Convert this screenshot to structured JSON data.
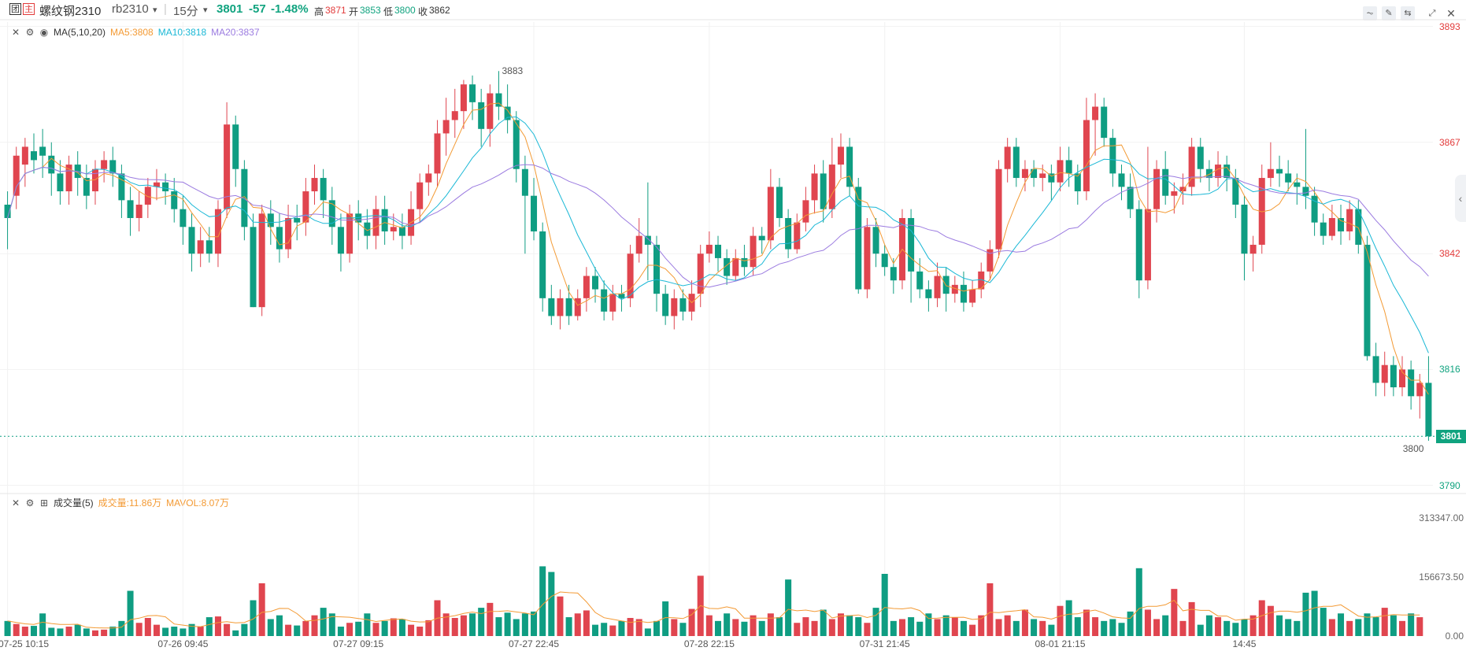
{
  "header": {
    "badge1": "团",
    "badge2": "主",
    "name": "螺纹钢2310",
    "code": "rb2310",
    "code_arrow": "▾",
    "divider": "|",
    "period": "15分",
    "period_arrow": "▾",
    "price": "3801",
    "change": "-57",
    "change_pct": "-1.48%",
    "high_label": "高",
    "high": "3871",
    "open_label": "开",
    "open": "3853",
    "low_label": "低",
    "low": "3800",
    "close_label": "收",
    "close": "3862"
  },
  "toolbar": {
    "icons": [
      "line-tool-icon",
      "pencil-icon",
      "compare-icon",
      "fullscreen-icon",
      "close-icon"
    ]
  },
  "main_legend": {
    "indicator": "MA(5,10,20)",
    "ma5": "MA5:3808",
    "ma10": "MA10:3818",
    "ma20": "MA20:3837"
  },
  "volume_legend": {
    "indicator": "成交量(5)",
    "vol": "成交量:11.86万",
    "mavol": "MAVOL:8.07万"
  },
  "colors": {
    "up": "#e0454f",
    "down": "#0f9d82",
    "ma5": "#f39a34",
    "ma10": "#1bb8d6",
    "ma20": "#9b7be0",
    "price_axis_up": "#e23b3b",
    "price_axis_down": "#10a37f"
  },
  "chart_data": {
    "type": "candlestick",
    "price_axis": {
      "ticks": [
        {
          "value": 3893,
          "label": "3893"
        },
        {
          "value": 3867,
          "label": "3867"
        },
        {
          "value": 3842,
          "label": "3842"
        },
        {
          "value": 3816,
          "label": "3816"
        },
        {
          "value": 3790,
          "label": "3790"
        }
      ],
      "ylim": [
        3788.5,
        3894
      ],
      "last_price": "3801",
      "last_price_value": 3801
    },
    "annotations": {
      "max": {
        "label": "3883",
        "value": 3883
      },
      "min": {
        "label": "3800",
        "value": 3800
      }
    },
    "x_ticks": [
      {
        "label": "07-25 10:15",
        "index": 0
      },
      {
        "label": "07-26 09:45",
        "index": 20
      },
      {
        "label": "07-27 09:15",
        "index": 40
      },
      {
        "label": "07-27 22:45",
        "index": 60
      },
      {
        "label": "07-28 22:15",
        "index": 80
      },
      {
        "label": "07-31 21:45",
        "index": 100
      },
      {
        "label": "08-01 21:15",
        "index": 120
      },
      {
        "label": "14:45",
        "index": 141
      }
    ],
    "volume_axis": {
      "ticks": [
        {
          "value": 313347,
          "label": "313347.00"
        },
        {
          "value": 156673.5,
          "label": "156673.50"
        },
        {
          "value": 0,
          "label": "0.00"
        }
      ],
      "ylim": [
        0,
        330000
      ]
    },
    "candles": [
      [
        3853,
        3850,
        3856,
        3843
      ],
      [
        3855,
        3864,
        3866,
        3852
      ],
      [
        3862,
        3866,
        3868,
        3857
      ],
      [
        3865,
        3863,
        3869,
        3860
      ],
      [
        3866,
        3864,
        3870,
        3859
      ],
      [
        3864,
        3860,
        3867,
        3855
      ],
      [
        3860,
        3856,
        3863,
        3853
      ],
      [
        3856,
        3862,
        3864,
        3853
      ],
      [
        3862,
        3859,
        3865,
        3855
      ],
      [
        3859,
        3855,
        3862,
        3852
      ],
      [
        3856,
        3861,
        3863,
        3853
      ],
      [
        3861,
        3863,
        3865,
        3858
      ],
      [
        3863,
        3860,
        3866,
        3857
      ],
      [
        3860,
        3854,
        3862,
        3850
      ],
      [
        3854,
        3850,
        3857,
        3846
      ],
      [
        3850,
        3853,
        3856,
        3847
      ],
      [
        3853,
        3857,
        3859,
        3850
      ],
      [
        3857,
        3858,
        3861,
        3854
      ],
      [
        3858,
        3856,
        3860,
        3853
      ],
      [
        3856,
        3852,
        3859,
        3849
      ],
      [
        3852,
        3848,
        3855,
        3844
      ],
      [
        3848,
        3842,
        3851,
        3838
      ],
      [
        3842,
        3845,
        3848,
        3839
      ],
      [
        3845,
        3842,
        3848,
        3840
      ],
      [
        3842,
        3852,
        3854,
        3839
      ],
      [
        3852,
        3871,
        3876,
        3850
      ],
      [
        3871,
        3861,
        3873,
        3857
      ],
      [
        3861,
        3848,
        3863,
        3845
      ],
      [
        3848,
        3830,
        3851,
        3830
      ],
      [
        3830,
        3851,
        3853,
        3828
      ],
      [
        3851,
        3848,
        3854,
        3844
      ],
      [
        3848,
        3843,
        3851,
        3840
      ],
      [
        3843,
        3850,
        3853,
        3841
      ],
      [
        3850,
        3849,
        3853,
        3845
      ],
      [
        3849,
        3856,
        3859,
        3846
      ],
      [
        3856,
        3859,
        3862,
        3853
      ],
      [
        3859,
        3854,
        3861,
        3850
      ],
      [
        3854,
        3848,
        3857,
        3844
      ],
      [
        3848,
        3842,
        3851,
        3838
      ],
      [
        3842,
        3851,
        3853,
        3840
      ],
      [
        3851,
        3849,
        3854,
        3845
      ],
      [
        3849,
        3846,
        3852,
        3843
      ],
      [
        3846,
        3852,
        3855,
        3843
      ],
      [
        3852,
        3847,
        3855,
        3844
      ],
      [
        3847,
        3848,
        3851,
        3845
      ],
      [
        3848,
        3846,
        3851,
        3843
      ],
      [
        3846,
        3852,
        3856,
        3844
      ],
      [
        3852,
        3858,
        3860,
        3849
      ],
      [
        3858,
        3860,
        3862,
        3855
      ],
      [
        3860,
        3869,
        3872,
        3857
      ],
      [
        3869,
        3872,
        3877,
        3864
      ],
      [
        3872,
        3874,
        3879,
        3868
      ],
      [
        3874,
        3880,
        3881,
        3870
      ],
      [
        3880,
        3876,
        3882,
        3872
      ],
      [
        3876,
        3870,
        3879,
        3866
      ],
      [
        3870,
        3878,
        3880,
        3866
      ],
      [
        3878,
        3875,
        3883,
        3872
      ],
      [
        3875,
        3872,
        3880,
        3869
      ],
      [
        3872,
        3861,
        3874,
        3858
      ],
      [
        3861,
        3855,
        3864,
        3842
      ],
      [
        3855,
        3847,
        3859,
        3845
      ],
      [
        3847,
        3832,
        3849,
        3829
      ],
      [
        3832,
        3828,
        3835,
        3826
      ],
      [
        3828,
        3832,
        3834,
        3825
      ],
      [
        3832,
        3828,
        3835,
        3826
      ],
      [
        3828,
        3832,
        3834,
        3827
      ],
      [
        3832,
        3837,
        3839,
        3829
      ],
      [
        3837,
        3834,
        3839,
        3831
      ],
      [
        3834,
        3829,
        3836,
        3827
      ],
      [
        3829,
        3833,
        3835,
        3827
      ],
      [
        3833,
        3832,
        3835,
        3829
      ],
      [
        3832,
        3842,
        3844,
        3830
      ],
      [
        3842,
        3846,
        3850,
        3840
      ],
      [
        3846,
        3844,
        3858,
        3836
      ],
      [
        3844,
        3833,
        3846,
        3829
      ],
      [
        3833,
        3828,
        3835,
        3826
      ],
      [
        3828,
        3832,
        3834,
        3825
      ],
      [
        3832,
        3829,
        3834,
        3827
      ],
      [
        3829,
        3833,
        3836,
        3827
      ],
      [
        3833,
        3842,
        3844,
        3830
      ],
      [
        3842,
        3844,
        3847,
        3840
      ],
      [
        3844,
        3841,
        3846,
        3838
      ],
      [
        3841,
        3837,
        3843,
        3835
      ],
      [
        3837,
        3841,
        3843,
        3836
      ],
      [
        3841,
        3839,
        3844,
        3837
      ],
      [
        3839,
        3846,
        3848,
        3837
      ],
      [
        3846,
        3845,
        3848,
        3842
      ],
      [
        3845,
        3857,
        3861,
        3843
      ],
      [
        3857,
        3850,
        3859,
        3848
      ],
      [
        3850,
        3843,
        3852,
        3841
      ],
      [
        3843,
        3849,
        3851,
        3842
      ],
      [
        3849,
        3854,
        3857,
        3847
      ],
      [
        3854,
        3860,
        3862,
        3851
      ],
      [
        3860,
        3852,
        3863,
        3849
      ],
      [
        3852,
        3862,
        3868,
        3850
      ],
      [
        3862,
        3866,
        3869,
        3859
      ],
      [
        3866,
        3857,
        3868,
        3855
      ],
      [
        3857,
        3834,
        3859,
        3833
      ],
      [
        3834,
        3848,
        3850,
        3832
      ],
      [
        3848,
        3842,
        3850,
        3839
      ],
      [
        3842,
        3839,
        3844,
        3837
      ],
      [
        3839,
        3836,
        3841,
        3833
      ],
      [
        3836,
        3850,
        3852,
        3834
      ],
      [
        3850,
        3838,
        3852,
        3831
      ],
      [
        3838,
        3834,
        3841,
        3832
      ],
      [
        3834,
        3832,
        3836,
        3829
      ],
      [
        3832,
        3837,
        3840,
        3830
      ],
      [
        3837,
        3833,
        3839,
        3829
      ],
      [
        3833,
        3835,
        3837,
        3831
      ],
      [
        3835,
        3831,
        3838,
        3829
      ],
      [
        3831,
        3834,
        3836,
        3830
      ],
      [
        3834,
        3838,
        3840,
        3832
      ],
      [
        3838,
        3843,
        3845,
        3836
      ],
      [
        3843,
        3861,
        3863,
        3841
      ],
      [
        3861,
        3866,
        3868,
        3858
      ],
      [
        3866,
        3859,
        3868,
        3857
      ],
      [
        3859,
        3861,
        3863,
        3856
      ],
      [
        3861,
        3859,
        3863,
        3857
      ],
      [
        3859,
        3860,
        3862,
        3856
      ],
      [
        3860,
        3858,
        3862,
        3854
      ],
      [
        3858,
        3863,
        3866,
        3856
      ],
      [
        3863,
        3860,
        3866,
        3857
      ],
      [
        3860,
        3856,
        3862,
        3853
      ],
      [
        3856,
        3872,
        3877,
        3854
      ],
      [
        3872,
        3875,
        3878,
        3864
      ],
      [
        3875,
        3868,
        3877,
        3866
      ],
      [
        3868,
        3860,
        3870,
        3857
      ],
      [
        3860,
        3857,
        3862,
        3854
      ],
      [
        3857,
        3852,
        3860,
        3850
      ],
      [
        3852,
        3836,
        3854,
        3832
      ],
      [
        3836,
        3852,
        3866,
        3834
      ],
      [
        3852,
        3861,
        3863,
        3849
      ],
      [
        3861,
        3855,
        3865,
        3853
      ],
      [
        3855,
        3856,
        3858,
        3851
      ],
      [
        3856,
        3857,
        3860,
        3853
      ],
      [
        3857,
        3866,
        3868,
        3855
      ],
      [
        3866,
        3861,
        3868,
        3858
      ],
      [
        3861,
        3859,
        3863,
        3856
      ],
      [
        3859,
        3862,
        3865,
        3857
      ],
      [
        3862,
        3859,
        3864,
        3856
      ],
      [
        3859,
        3853,
        3861,
        3850
      ],
      [
        3853,
        3842,
        3855,
        3836
      ],
      [
        3842,
        3844,
        3846,
        3838
      ],
      [
        3844,
        3859,
        3862,
        3842
      ],
      [
        3859,
        3861,
        3867,
        3857
      ],
      [
        3861,
        3860,
        3864,
        3857
      ],
      [
        3860,
        3858,
        3863,
        3856
      ],
      [
        3858,
        3857,
        3860,
        3853
      ],
      [
        3857,
        3855,
        3870,
        3852
      ],
      [
        3855,
        3849,
        3857,
        3846
      ],
      [
        3849,
        3846,
        3851,
        3844
      ],
      [
        3846,
        3850,
        3853,
        3845
      ],
      [
        3850,
        3847,
        3853,
        3844
      ],
      [
        3847,
        3852,
        3854,
        3845
      ],
      [
        3852,
        3844,
        3854,
        3842
      ],
      [
        3844,
        3819,
        3846,
        3818
      ],
      [
        3819,
        3813,
        3822,
        3810
      ],
      [
        3813,
        3817,
        3820,
        3810
      ],
      [
        3817,
        3812,
        3819,
        3810
      ],
      [
        3812,
        3816,
        3819,
        3810
      ],
      [
        3816,
        3810,
        3818,
        3807
      ],
      [
        3810,
        3813,
        3815,
        3805
      ],
      [
        3813,
        3801,
        3819,
        3800
      ]
    ],
    "volume": [
      40,
      32,
      25,
      27,
      60,
      22,
      20,
      25,
      30,
      20,
      15,
      17,
      25,
      40,
      120,
      35,
      48,
      30,
      22,
      25,
      20,
      32,
      25,
      50,
      52,
      32,
      15,
      32,
      95,
      140,
      45,
      55,
      30,
      28,
      40,
      55,
      75,
      60,
      25,
      35,
      38,
      60,
      35,
      40,
      47,
      45,
      30,
      25,
      42,
      95,
      60,
      48,
      55,
      60,
      75,
      88,
      50,
      62,
      45,
      60,
      65,
      185,
      170,
      105,
      50,
      60,
      68,
      30,
      35,
      28,
      40,
      48,
      45,
      20,
      40,
      92,
      45,
      35,
      72,
      160,
      55,
      40,
      60,
      45,
      38,
      55,
      40,
      60,
      50,
      150,
      35,
      50,
      40,
      70,
      45,
      60,
      55,
      50,
      35,
      75,
      165,
      40,
      45,
      50,
      38,
      60,
      45,
      55,
      50,
      40,
      30,
      55,
      140,
      45,
      55,
      40,
      70,
      45,
      40,
      30,
      80,
      95,
      50,
      70,
      50,
      40,
      45,
      35,
      65,
      180,
      70,
      45,
      55,
      125,
      40,
      90,
      30,
      55,
      50,
      40,
      35,
      45,
      55,
      95,
      80,
      55,
      45,
      40,
      115,
      120,
      75,
      45,
      60,
      40,
      45,
      60,
      50,
      75,
      55,
      40,
      60,
      50
    ],
    "volume_legend": "成交量(5)"
  },
  "page_info": {
    "collapse_arrow": "‹"
  }
}
